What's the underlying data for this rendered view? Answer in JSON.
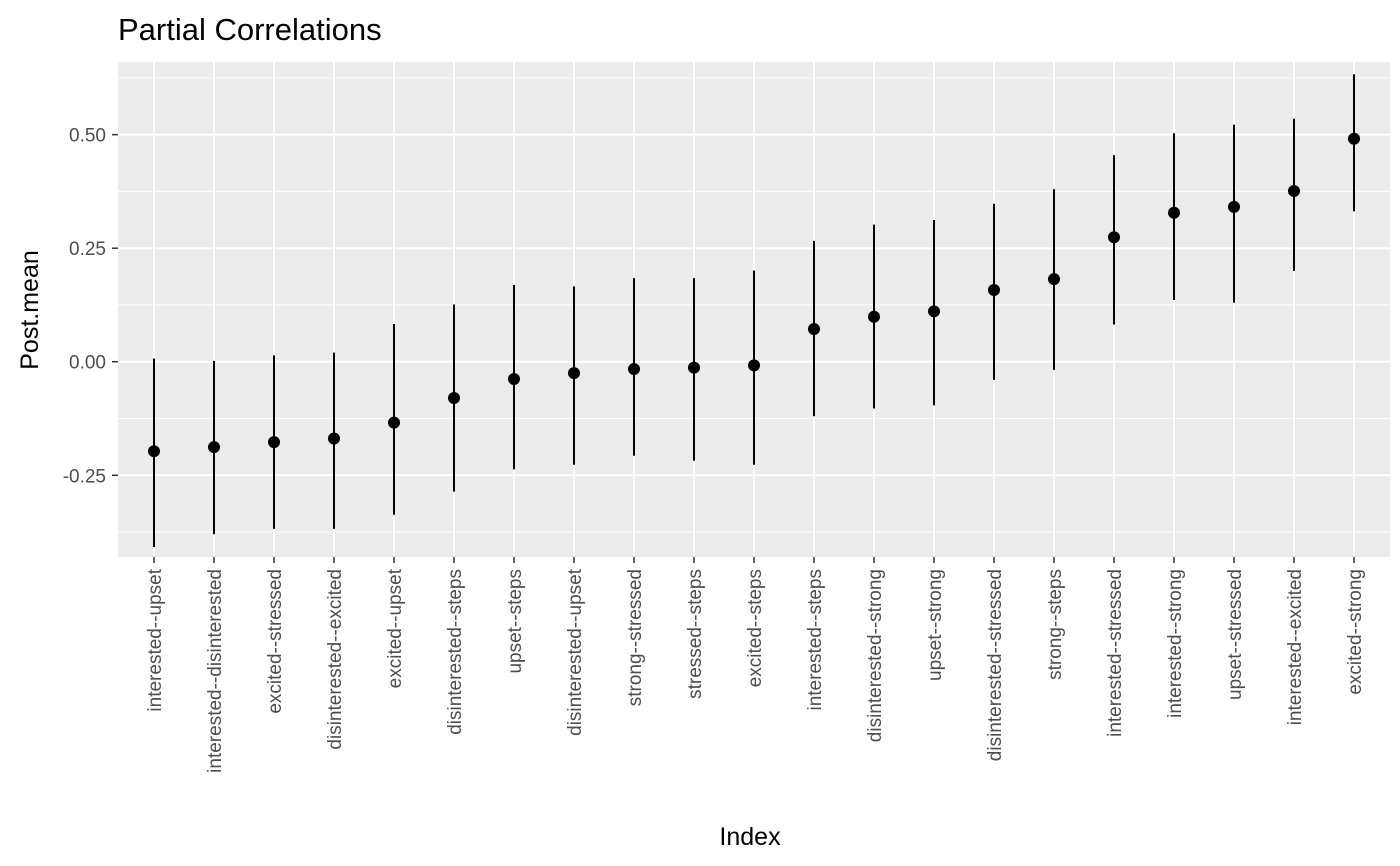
{
  "chart_data": {
    "type": "scatter",
    "title": "Partial Correlations",
    "xlabel": "Index",
    "ylabel": "Post.mean",
    "ylim": [
      -0.43,
      0.66
    ],
    "yticks": [
      -0.25,
      0.0,
      0.25,
      0.5
    ],
    "ytick_labels": [
      "-0.25",
      "0.00",
      "0.25",
      "0.50"
    ],
    "grid": true,
    "background_color": "#ebebeb",
    "grid_color": "#ffffff",
    "mark_color": "#000000",
    "categories": [
      "interested--upset",
      "interested--disinterested",
      "excited--stressed",
      "disinterested--excited",
      "excited--upset",
      "disinterested--steps",
      "upset--steps",
      "disinterested--upset",
      "strong--stressed",
      "stressed--steps",
      "excited--steps",
      "interested--steps",
      "disinterested--strong",
      "upset--strong",
      "disinterested--stressed",
      "strong--steps",
      "interested--stressed",
      "interested--strong",
      "upset--stressed",
      "interested--excited",
      "excited--strong"
    ],
    "values": [
      -0.197,
      -0.188,
      -0.177,
      -0.169,
      -0.134,
      -0.08,
      -0.038,
      -0.025,
      -0.016,
      -0.013,
      -0.008,
      0.072,
      0.099,
      0.111,
      0.158,
      0.182,
      0.274,
      0.328,
      0.341,
      0.376,
      0.491
    ],
    "lower": [
      -0.408,
      -0.38,
      -0.368,
      -0.368,
      -0.337,
      -0.286,
      -0.237,
      -0.227,
      -0.207,
      -0.218,
      -0.227,
      -0.12,
      -0.103,
      -0.096,
      -0.04,
      -0.018,
      0.082,
      0.136,
      0.13,
      0.2,
      0.331
    ],
    "upper": [
      0.007,
      0.002,
      0.014,
      0.02,
      0.083,
      0.126,
      0.169,
      0.166,
      0.184,
      0.184,
      0.201,
      0.266,
      0.302,
      0.312,
      0.348,
      0.38,
      0.455,
      0.503,
      0.522,
      0.535,
      0.633
    ]
  }
}
